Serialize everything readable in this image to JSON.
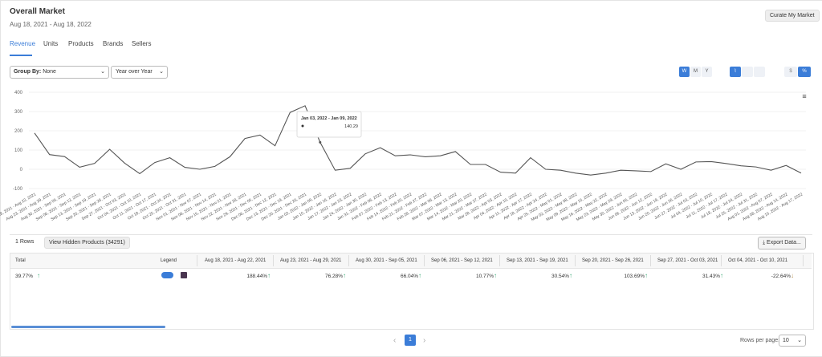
{
  "header": {
    "title": "Overall Market",
    "date_range": "Aug 18, 2021 - Aug 18, 2022",
    "button": "Curate My Market"
  },
  "tabs": [
    "Revenue",
    "Units",
    "Products",
    "Brands",
    "Sellers"
  ],
  "controls": {
    "group_by_label": "Group By:",
    "group_by_value": "None",
    "comparison": "Year over Year",
    "period_buttons": [
      "W",
      "M",
      "Y"
    ],
    "unit_buttons": [
      "$",
      "%"
    ]
  },
  "chart_data": {
    "type": "line",
    "color": "#555555",
    "grid": true,
    "ylim": [
      -100,
      400
    ],
    "yticks": [
      -100,
      0,
      100,
      200,
      300,
      400
    ],
    "categories": [
      "Aug 18, 2021 - Aug 22, 2021",
      "Aug 23, 2021 - Aug 29, 2021",
      "Aug 30, 2021 - Sep 05, 2021",
      "Sep 06, 2021 - Sep 12, 2021",
      "Sep 13, 2021 - Sep 19, 2021",
      "Sep 20, 2021 - Sep 26, 2021",
      "Sep 27, 2021 - Oct 03, 2021",
      "Oct 04, 2021 - Oct 10, 2021",
      "Oct 11, 2021 - Oct 17, 2021",
      "Oct 18, 2021 - Oct 24, 2021",
      "Oct 25, 2021 - Oct 31, 2021",
      "Nov 01, 2021 - Nov 07, 2021",
      "Nov 08, 2021 - Nov 14, 2021",
      "Nov 15, 2021 - Nov 21, 2021",
      "Nov 22, 2021 - Nov 28, 2021",
      "Nov 29, 2021 - Dec 05, 2021",
      "Dec 06, 2021 - Dec 12, 2021",
      "Dec 13, 2021 - Dec 19, 2021",
      "Dec 20, 2021 - Dec 26, 2021",
      "Jan 03, 2022 - Jan 09, 2022",
      "Jan 10, 2022 - Jan 16, 2022",
      "Jan 17, 2022 - Jan 23, 2022",
      "Jan 24, 2022 - Jan 30, 2022",
      "Jan 31, 2022 - Feb 06, 2022",
      "Feb 07, 2022 - Feb 13, 2022",
      "Feb 14, 2022 - Feb 20, 2022",
      "Feb 21, 2022 - Feb 27, 2022",
      "Feb 28, 2022 - Mar 06, 2022",
      "Mar 07, 2022 - Mar 13, 2022",
      "Mar 14, 2022 - Mar 20, 2022",
      "Mar 21, 2022 - Mar 27, 2022",
      "Mar 28, 2022 - Apr 03, 2022",
      "Apr 04, 2022 - Apr 10, 2022",
      "Apr 11, 2022 - Apr 17, 2022",
      "Apr 18, 2022 - Apr 24, 2022",
      "Apr 25, 2022 - May 01, 2022",
      "May 02, 2022 - May 08, 2022",
      "May 09, 2022 - May 15, 2022",
      "May 16, 2022 - May 22, 2022",
      "May 23, 2022 - May 29, 2022",
      "May 30, 2022 - Jun 05, 2022",
      "Jun 06, 2022 - Jun 12, 2022",
      "Jun 13, 2022 - Jun 19, 2022",
      "Jun 20, 2022 - Jun 26, 2022",
      "Jun 27, 2022 - Jul 03, 2022",
      "Jul 04, 2022 - Jul 10, 2022",
      "Jul 11, 2022 - Jul 17, 2022",
      "Jul 18, 2022 - Jul 24, 2022",
      "Jul 25, 2022 - Jul 31, 2022",
      "Aug 01, 2022 - Aug 07, 2022",
      "Aug 08, 2022 - Aug 14, 2022",
      "Aug 15, 2022 - Aug 17, 2022"
    ],
    "values": [
      188.44,
      76.28,
      66.04,
      10.77,
      30.54,
      103.69,
      31.43,
      -22.64,
      35,
      60,
      10,
      0,
      15,
      65,
      160,
      178,
      122,
      295,
      330,
      140.29,
      -5,
      5,
      80,
      112,
      70,
      75,
      65,
      70,
      92,
      25,
      25,
      -15,
      -20,
      60,
      0,
      -5,
      -20,
      -30,
      -20,
      -5,
      -8,
      -12,
      28,
      0,
      38,
      40,
      30,
      18,
      12,
      -5,
      20,
      -20
    ]
  },
  "table": {
    "rows_count": "1 Rows",
    "hidden_button": "View Hidden Products (34291)",
    "export": "Export Data...",
    "columns": [
      "Total",
      "Legend",
      "Aug 18, 2021 - Aug 22, 2021",
      "Aug 23, 2021 - Aug 29, 2021",
      "Aug 30, 2021 - Sep 05, 2021",
      "Sep 06, 2021 - Sep 12, 2021",
      "Sep 13, 2021 - Sep 19, 2021",
      "Sep 20, 2021 - Sep 26, 2021",
      "Sep 27, 2021 - Oct 03, 2021",
      "Oct 04, 2021 - Oct 10, 2021"
    ],
    "row": [
      "39.77%",
      "188.44%",
      "76.28%",
      "66.04%",
      "10.77%",
      "30.54%",
      "103.69%",
      "31.43%",
      "-22.64%"
    ]
  },
  "pagination": {
    "page": "1",
    "rows_per_page_label": "Rows per page:",
    "rows_per_page": "10"
  }
}
